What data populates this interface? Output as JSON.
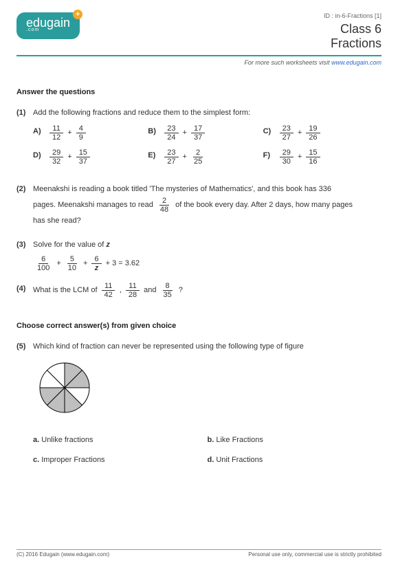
{
  "header": {
    "logo_text": "edugain",
    "logo_sub": ".com",
    "id_line": "ID : in-6-Fractions [1]",
    "class_label": "Class 6",
    "topic": "Fractions",
    "visit_prefix": "For more such worksheets visit ",
    "visit_link": "www.edugain.com"
  },
  "section1": {
    "title": "Answer the questions",
    "q1": {
      "num": "(1)",
      "text": "Add the following fractions and reduce them to the simplest form:",
      "items": [
        {
          "lbl": "A)",
          "a_n": "11",
          "a_d": "12",
          "b_n": "4",
          "b_d": "9"
        },
        {
          "lbl": "B)",
          "a_n": "23",
          "a_d": "24",
          "b_n": "17",
          "b_d": "37"
        },
        {
          "lbl": "C)",
          "a_n": "23",
          "a_d": "27",
          "b_n": "19",
          "b_d": "26"
        },
        {
          "lbl": "D)",
          "a_n": "29",
          "a_d": "32",
          "b_n": "15",
          "b_d": "37"
        },
        {
          "lbl": "E)",
          "a_n": "23",
          "a_d": "27",
          "b_n": "2",
          "b_d": "25"
        },
        {
          "lbl": "F)",
          "a_n": "29",
          "a_d": "30",
          "b_n": "15",
          "b_d": "16"
        }
      ]
    },
    "q2": {
      "num": "(2)",
      "t1": "Meenakshi is reading a book titled 'The mysteries of Mathematics', and this book has 336",
      "t2a": "pages. Meenakshi manages to read ",
      "frac_n": "2",
      "frac_d": "48",
      "t2b": " of the book every day. After 2 days, how many pages",
      "t3": "has she read?"
    },
    "q3": {
      "num": "(3)",
      "text": "Solve for the value of ",
      "var": "z",
      "terms": [
        {
          "n": "6",
          "d": "100"
        },
        {
          "n": "5",
          "d": "10"
        },
        {
          "n": "6",
          "d": "z"
        }
      ],
      "tail": " + 3 = 3.62"
    },
    "q4": {
      "num": "(4)",
      "t1": "What is the LCM of ",
      "fracs": [
        {
          "n": "11",
          "d": "42"
        },
        {
          "n": "11",
          "d": "28"
        },
        {
          "n": "8",
          "d": "35"
        }
      ],
      "sep1": " , ",
      "sep2": " and ",
      "t2": " ?"
    }
  },
  "section2": {
    "title": "Choose correct answer(s) from given choice",
    "q5": {
      "num": "(5)",
      "text": "Which kind of fraction can never be represented using the following type of figure",
      "pie": {
        "slices": 8,
        "shaded": [
          0,
          1,
          3,
          4,
          5
        ],
        "fill": "#bfbfbf",
        "stroke": "#000000",
        "radius": 36
      },
      "choices": [
        {
          "k": "a.",
          "t": "Unlike fractions"
        },
        {
          "k": "b.",
          "t": "Like Fractions"
        },
        {
          "k": "c.",
          "t": "Improper Fractions"
        },
        {
          "k": "d.",
          "t": "Unit Fractions"
        }
      ]
    }
  },
  "footer": {
    "left": "(C) 2016 Edugain (www.edugain.com)",
    "right": "Personal use only, commercial use is strictly prohibited"
  }
}
